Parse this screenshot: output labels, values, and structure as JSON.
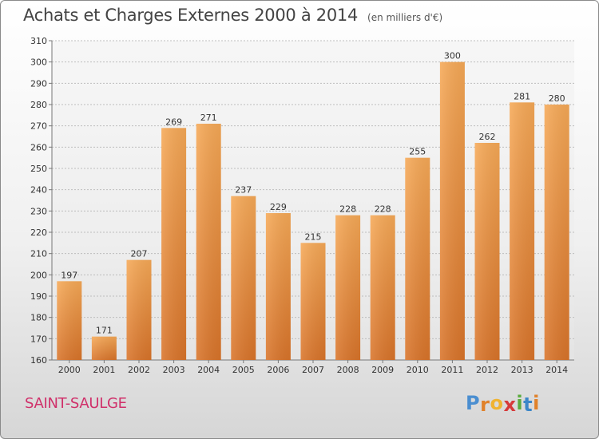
{
  "header": {
    "title": "Achats et Charges Externes 2000 à 2014",
    "subtitle": "(en milliers d'€)"
  },
  "footer": {
    "town": "SAINT-SAULGE",
    "logo": [
      "P",
      "r",
      "o",
      "x",
      "i",
      "t",
      "i"
    ]
  },
  "colors": {
    "bar_light": "#f6a957",
    "bar_dark": "#d9742a",
    "grid": "#bdbdbd",
    "town": "#d0306a",
    "logo": [
      "#4a8ed0",
      "#e0812a",
      "#f0b330",
      "#d63a3a",
      "#5aab3c",
      "#3b86c8",
      "#e0812a"
    ]
  },
  "chart_data": {
    "type": "bar",
    "categories": [
      "2000",
      "2001",
      "2002",
      "2003",
      "2004",
      "2005",
      "2006",
      "2007",
      "2008",
      "2009",
      "2010",
      "2011",
      "2012",
      "2013",
      "2014"
    ],
    "values": [
      197,
      171,
      207,
      269,
      271,
      237,
      229,
      215,
      228,
      228,
      255,
      300,
      262,
      281,
      280
    ],
    "title": "Achats et Charges Externes 2000 à 2014",
    "subtitle": "(en milliers d'€)",
    "xlabel": "",
    "ylabel": "",
    "ylim": [
      160,
      310
    ],
    "yticks": [
      160,
      170,
      180,
      190,
      200,
      210,
      220,
      230,
      240,
      250,
      260,
      270,
      280,
      290,
      300,
      310
    ],
    "grid": true,
    "data_labels": true
  }
}
